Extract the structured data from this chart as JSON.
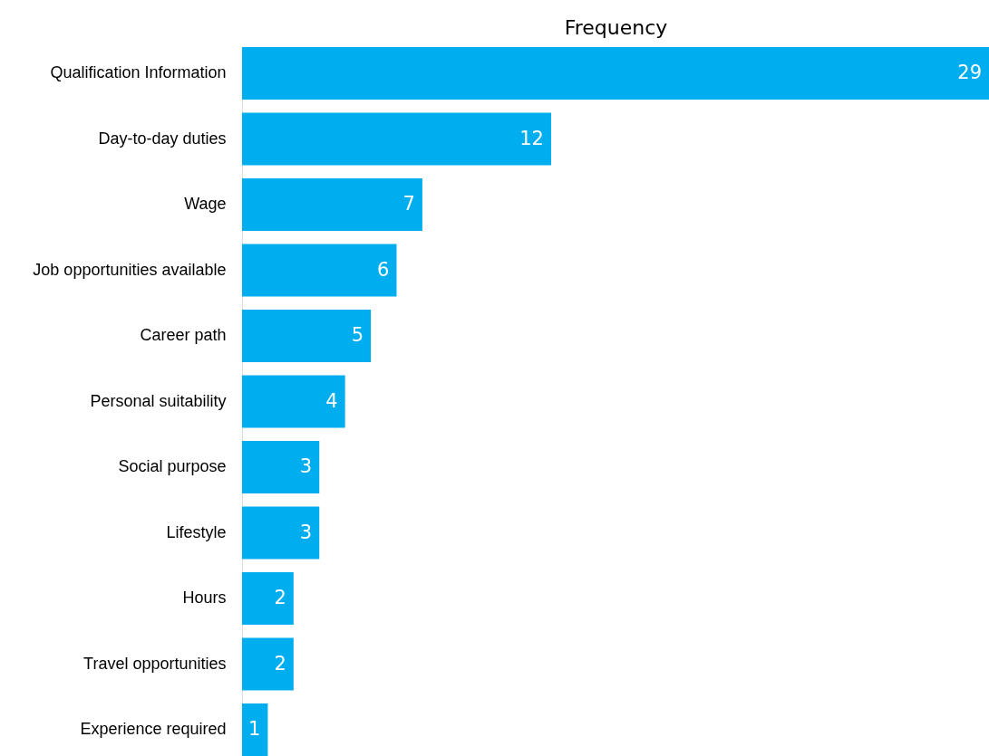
{
  "chart_data": {
    "type": "bar",
    "orientation": "horizontal",
    "xlabel": "Frequency",
    "categories": [
      "Qualification Information",
      "Day-to-day duties",
      "Wage",
      "Job opportunities available",
      "Career path",
      "Personal suitability",
      "Social purpose",
      "Lifestyle",
      "Hours",
      "Travel opportunities",
      "Experience required"
    ],
    "values": [
      29,
      12,
      7,
      6,
      5,
      4,
      3,
      3,
      2,
      2,
      1
    ],
    "color": "#00aeef",
    "data_labels": true,
    "grid": false
  }
}
